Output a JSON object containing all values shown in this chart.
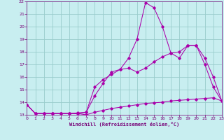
{
  "title": "",
  "xlabel": "Windchill (Refroidissement éolien,°C)",
  "background_color": "#c8eef0",
  "line_color": "#aa00aa",
  "grid_color": "#99cccc",
  "text_color": "#770077",
  "xmin": 0,
  "xmax": 23,
  "ymin": 13,
  "ymax": 22,
  "yticks": [
    13,
    14,
    15,
    16,
    17,
    18,
    19,
    20,
    21,
    22
  ],
  "xticks": [
    0,
    1,
    2,
    3,
    4,
    5,
    6,
    7,
    8,
    9,
    10,
    11,
    12,
    13,
    14,
    15,
    16,
    17,
    18,
    19,
    20,
    21,
    22,
    23
  ],
  "line1_x": [
    0,
    1,
    2,
    3,
    4,
    5,
    6,
    7,
    8,
    9,
    10,
    11,
    12,
    13,
    14,
    15,
    16,
    17,
    18,
    19,
    20,
    21,
    22,
    23
  ],
  "line1_y": [
    13.8,
    13.1,
    13.1,
    13.1,
    13.1,
    13.1,
    13.1,
    13.0,
    13.2,
    13.35,
    13.5,
    13.6,
    13.7,
    13.8,
    13.9,
    13.95,
    14.0,
    14.1,
    14.15,
    14.2,
    14.25,
    14.3,
    14.35,
    14.1
  ],
  "line2_x": [
    0,
    1,
    2,
    3,
    4,
    5,
    6,
    7,
    8,
    9,
    10,
    11,
    12,
    13,
    14,
    15,
    16,
    17,
    18,
    19,
    20,
    21,
    22,
    23
  ],
  "line2_y": [
    13.8,
    13.1,
    13.1,
    13.1,
    13.1,
    13.1,
    13.1,
    13.2,
    14.5,
    15.5,
    16.4,
    16.6,
    17.5,
    19.0,
    21.9,
    21.5,
    20.0,
    17.9,
    17.5,
    18.5,
    18.5,
    17.0,
    15.2,
    14.1
  ],
  "line3_x": [
    0,
    1,
    2,
    3,
    4,
    5,
    6,
    7,
    8,
    9,
    10,
    11,
    12,
    13,
    14,
    15,
    16,
    17,
    18,
    19,
    20,
    21,
    22,
    23
  ],
  "line3_y": [
    13.8,
    13.1,
    13.1,
    13.1,
    13.1,
    13.1,
    13.15,
    13.2,
    15.2,
    15.8,
    16.2,
    16.6,
    16.7,
    16.4,
    16.7,
    17.2,
    17.6,
    17.9,
    18.0,
    18.5,
    18.5,
    17.5,
    16.0,
    14.1
  ]
}
